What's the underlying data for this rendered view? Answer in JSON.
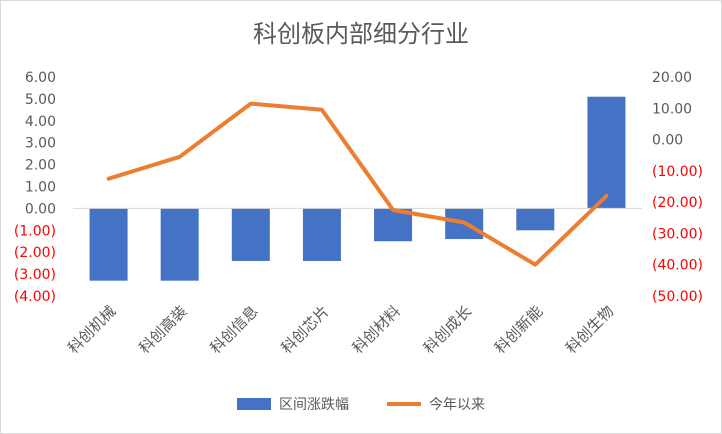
{
  "chart_data": {
    "type": "bar+line",
    "title": "科创板内部细分行业",
    "categories": [
      "科创机械",
      "科创高装",
      "科创信息",
      "科创芯片",
      "科创材料",
      "科创成长",
      "科创新能",
      "科创生物"
    ],
    "series": [
      {
        "name": "区间涨跌幅",
        "type": "bar",
        "axis": "left",
        "color": "#4472c4",
        "values": [
          -3.3,
          -3.3,
          -2.4,
          -2.4,
          -1.5,
          -1.4,
          -1.0,
          5.1
        ]
      },
      {
        "name": "今年以来",
        "type": "line",
        "axis": "right",
        "color": "#ed7d31",
        "values": [
          -12.5,
          -5.5,
          11.5,
          9.5,
          -22.5,
          -26.5,
          -40.0,
          -18.0
        ]
      }
    ],
    "left_axis": {
      "ylim": [
        -4,
        6
      ],
      "step": 1,
      "tick_labels": [
        "6.00",
        "5.00",
        "4.00",
        "3.00",
        "2.00",
        "1.00",
        "0.00",
        "(1.00)",
        "(2.00)",
        "(3.00)",
        "(4.00)"
      ]
    },
    "right_axis": {
      "ylim": [
        -50,
        20
      ],
      "step": 10,
      "tick_labels": [
        "20.00",
        "10.00",
        "0.00",
        "(10.00)",
        "(20.00)",
        "(30.00)",
        "(40.00)",
        "(50.00)"
      ]
    },
    "tick_color": "#595959",
    "negative_tick_color": "#ff0000",
    "legend_position": "bottom"
  }
}
